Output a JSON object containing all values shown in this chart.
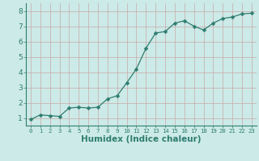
{
  "title": "",
  "xlabel": "Humidex (Indice chaleur)",
  "ylabel": "",
  "x_values": [
    0,
    1,
    2,
    3,
    4,
    5,
    6,
    7,
    8,
    9,
    10,
    11,
    12,
    13,
    14,
    15,
    16,
    17,
    18,
    19,
    20,
    21,
    22,
    23
  ],
  "y_values": [
    0.9,
    1.2,
    1.15,
    1.1,
    1.65,
    1.7,
    1.65,
    1.7,
    2.25,
    2.45,
    3.3,
    4.2,
    5.55,
    6.55,
    6.65,
    7.2,
    7.35,
    7.0,
    6.75,
    7.2,
    7.5,
    7.6,
    7.8,
    7.85
  ],
  "line_color": "#2e7d70",
  "marker": "D",
  "marker_size": 2.5,
  "bg_color": "#cceae7",
  "grid_color": "#b0d8d4",
  "axis_color": "#2e7d70",
  "tick_color": "#2e7d70",
  "label_color": "#2e7d70",
  "ylim": [
    0.5,
    8.5
  ],
  "xlim": [
    -0.5,
    23.5
  ],
  "yticks": [
    1,
    2,
    3,
    4,
    5,
    6,
    7,
    8
  ],
  "xticks": [
    0,
    1,
    2,
    3,
    4,
    5,
    6,
    7,
    8,
    9,
    10,
    11,
    12,
    13,
    14,
    15,
    16,
    17,
    18,
    19,
    20,
    21,
    22,
    23
  ],
  "xlabel_fontsize": 7.5,
  "tick_fontsize": 6.5,
  "xtick_fontsize": 5.2
}
